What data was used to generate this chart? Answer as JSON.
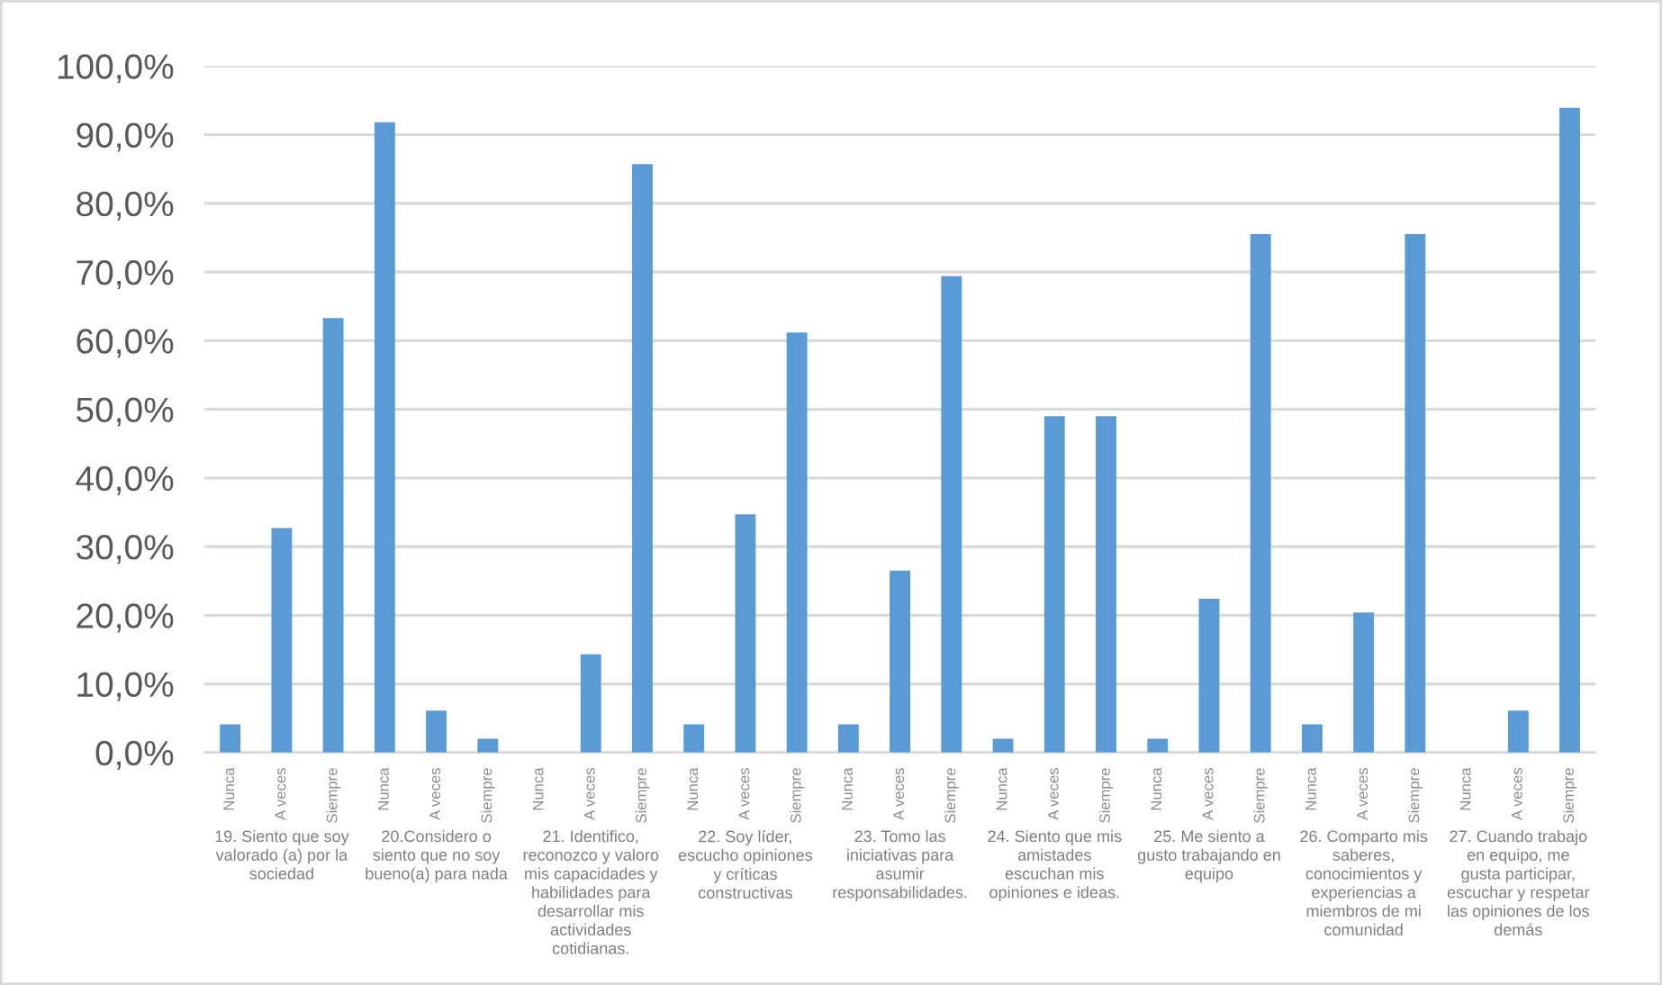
{
  "chart_data": {
    "type": "bar",
    "categories": [
      "Nunca",
      "A veces",
      "Siempre",
      "Nunca",
      "A veces",
      "Siempre",
      "Nunca",
      "A veces",
      "Siempre",
      "Nunca",
      "A veces",
      "Siempre",
      "Nunca",
      "A veces",
      "Siempre",
      "Nunca",
      "A veces",
      "Siempre",
      "Nunca",
      "A veces",
      "Siempre",
      "Nunca",
      "A veces",
      "Siempre",
      "Nunca",
      "A veces",
      "Siempre"
    ],
    "values": [
      4.1,
      32.7,
      63.3,
      91.8,
      6.1,
      2.0,
      0,
      14.3,
      85.7,
      4.1,
      34.7,
      61.2,
      4.1,
      26.5,
      69.4,
      2.0,
      49.0,
      49.0,
      2.0,
      22.4,
      75.5,
      4.1,
      20.4,
      75.5,
      0,
      6.1,
      93.9
    ],
    "color": "#5b9bd5",
    "ylim": [
      0,
      100
    ],
    "yticks": [
      {
        "value": 0,
        "label": "0,0%"
      },
      {
        "value": 10,
        "label": "10,0%"
      },
      {
        "value": 20,
        "label": "20,0%"
      },
      {
        "value": 30,
        "label": "30,0%"
      },
      {
        "value": 40,
        "label": "40,0%"
      },
      {
        "value": 50,
        "label": "50,0%"
      },
      {
        "value": 60,
        "label": "60,0%"
      },
      {
        "value": 70,
        "label": "70,0%"
      },
      {
        "value": 80,
        "label": "80,0%"
      },
      {
        "value": 90,
        "label": "90,0%"
      },
      {
        "value": 100,
        "label": "100,0%"
      }
    ],
    "grid": "y",
    "annotations": [
      "19. Siento que soy valorado (a) por la sociedad",
      "20.Considero o siento que no soy bueno(a) para nada",
      "21. Identifico, reconozco y valoro mis capacidades y habilidades para desarrollar mis actividades cotidianas.",
      "22. Soy líder, escucho opiniones y críticas constructivas",
      "23. Tomo las iniciativas para asumir responsabilidades.",
      "24. Siento que mis amistades escuchan mis opiniones e ideas.",
      "25. Me siento a gusto trabajando en equipo",
      "26. Comparto mis saberes, conocimientos y experiencias a miembros de mi comunidad",
      "27. Cuando trabajo en equipo, me gusta participar, escuchar y respetar las opiniones de los demás"
    ]
  }
}
